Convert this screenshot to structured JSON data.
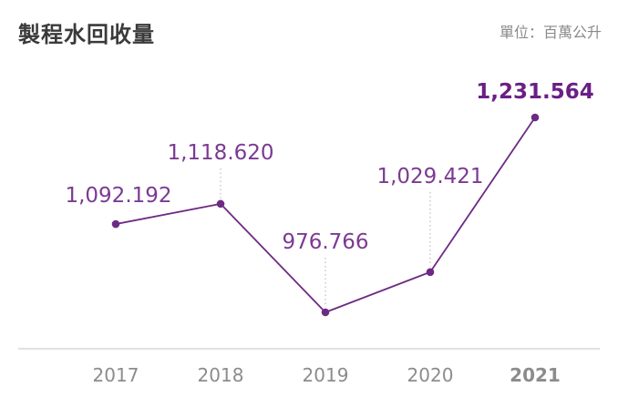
{
  "chart_data": {
    "type": "line",
    "title": "製程水回收量",
    "unit_label": "單位：百萬公升",
    "x": [
      "2017",
      "2018",
      "2019",
      "2020",
      "2021"
    ],
    "values": [
      1092.192,
      1118.62,
      976.766,
      1029.421,
      1231.564
    ],
    "value_labels": [
      "1,092.192",
      "1,118.620",
      "976.766",
      "1,029.421",
      "1,231.564"
    ],
    "highlight": "2021",
    "ylim": [
      960,
      1250
    ],
    "grid": false,
    "colors": {
      "line": "#6e2a83",
      "label": "#7b3a92",
      "highlight": "#6a1f86",
      "axis": "#cfcfcf",
      "tick": "#8c8c8c"
    }
  }
}
